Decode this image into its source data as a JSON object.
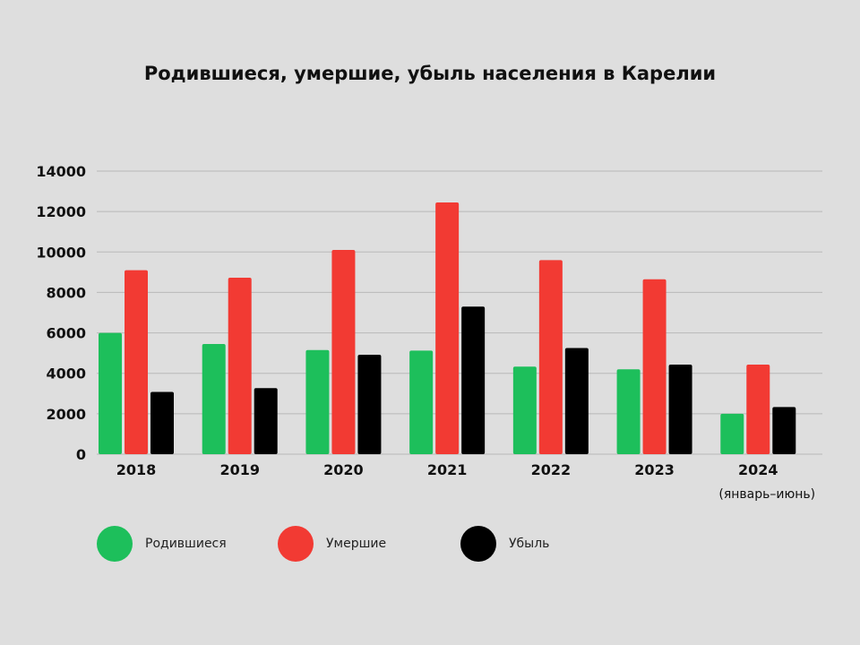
{
  "chart_data": {
    "type": "bar",
    "title": "Родившиеся, умершие, убыль населения в Карелии",
    "categories": [
      "2018",
      "2019",
      "2020",
      "2021",
      "2022",
      "2023",
      "2024"
    ],
    "category_sublabels": [
      "",
      "",
      "",
      "",
      "",
      "",
      "(январь–июнь)"
    ],
    "series": [
      {
        "name": "Родившиеся",
        "color": "#1dbf5b",
        "values": [
          6000,
          5450,
          5150,
          5120,
          4330,
          4200,
          2000
        ]
      },
      {
        "name": "Умершие",
        "color": "#f23a33",
        "values": [
          9100,
          8730,
          10100,
          12450,
          9600,
          8650,
          4430
        ]
      },
      {
        "name": "Убыль",
        "color": "#000000",
        "values": [
          3080,
          3270,
          4920,
          7300,
          5250,
          4430,
          2330
        ]
      }
    ],
    "ylim": [
      0,
      14000
    ],
    "yticks": [
      0,
      2000,
      4000,
      6000,
      8000,
      10000,
      12000,
      14000
    ],
    "grid": true,
    "legend_position": "bottom"
  }
}
